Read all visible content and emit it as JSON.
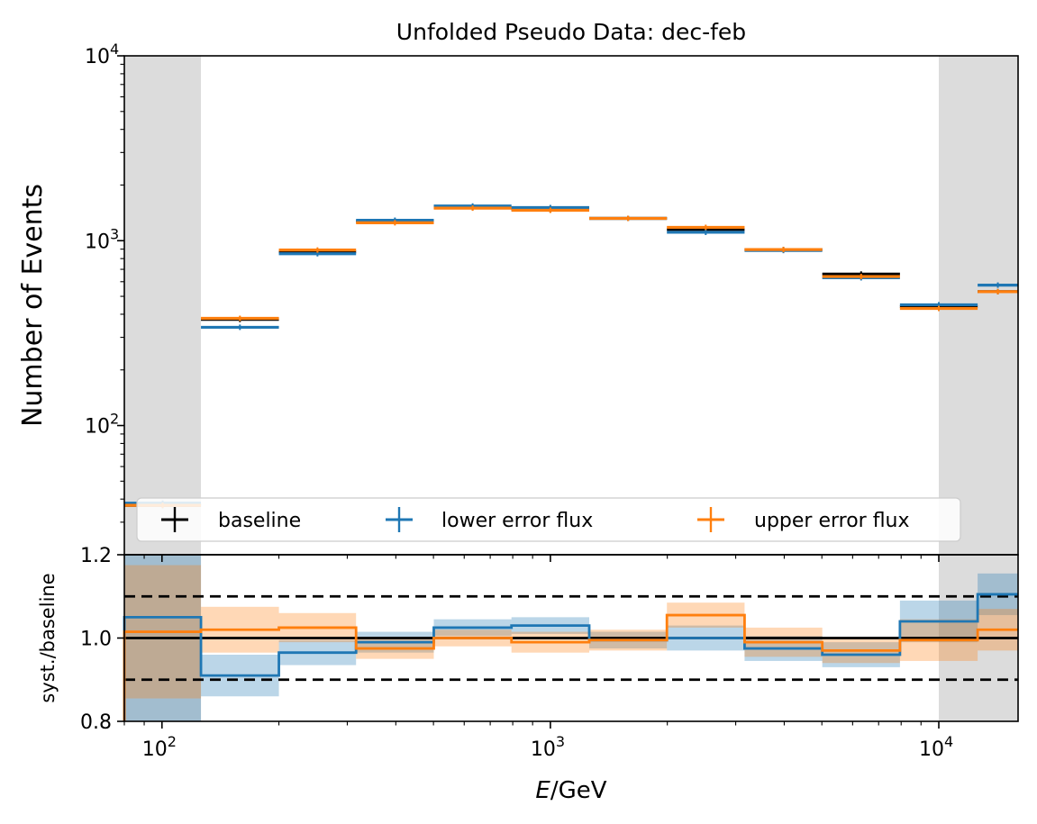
{
  "chart_data": [
    {
      "type": "line",
      "title": "Unfolded Pseudo Data: dec-feb",
      "ylabel": "Number of Events",
      "yscale": "log",
      "ylim": [
        20,
        10000
      ],
      "xscale": "log",
      "xlim": [
        80,
        16000
      ],
      "y_ticks": [
        {
          "base": "10",
          "exp": "2",
          "value": 100
        },
        {
          "base": "10",
          "exp": "3",
          "value": 1000
        },
        {
          "base": "10",
          "exp": "4",
          "value": 10000
        }
      ],
      "shaded_x_ranges": [
        [
          80,
          126
        ],
        [
          10000,
          16000
        ]
      ],
      "bin_edges": [
        80,
        126,
        200,
        316,
        501,
        794,
        1259,
        1995,
        3162,
        5012,
        7943,
        12589,
        16000
      ],
      "series": [
        {
          "name": "baseline",
          "color": "#000000",
          "values": [
            37,
            375,
            870,
            1270,
            1510,
            1470,
            1320,
            1150,
            895,
            660,
            440,
            530
          ]
        },
        {
          "name": "lower error flux",
          "color": "#1f77b4",
          "values": [
            38,
            340,
            850,
            1290,
            1540,
            1510,
            1320,
            1110,
            885,
            630,
            450,
            575
          ]
        },
        {
          "name": "upper error flux",
          "color": "#ff7f0e",
          "values": [
            37,
            380,
            890,
            1250,
            1500,
            1460,
            1320,
            1180,
            895,
            640,
            430,
            530
          ]
        }
      ],
      "legend": {
        "placement": "bottom",
        "entries": [
          "baseline",
          "lower error flux",
          "upper error flux"
        ]
      }
    },
    {
      "type": "line",
      "ylabel": "syst./baseline",
      "xlabel_var": "E",
      "xlabel_unit": "/GeV",
      "ylim": [
        0.8,
        1.2
      ],
      "y_ticks": [
        "0.8",
        "1.0",
        "1.2"
      ],
      "x_ticks": [
        {
          "base": "10",
          "exp": "2",
          "value": 100
        },
        {
          "base": "10",
          "exp": "3",
          "value": 1000
        },
        {
          "base": "10",
          "exp": "4",
          "value": 10000
        }
      ],
      "reference_lines": [
        1.0,
        0.9,
        1.1
      ],
      "series": [
        {
          "name": "lower error flux",
          "color": "#1f77b4",
          "values": [
            1.05,
            0.91,
            0.965,
            0.99,
            1.025,
            1.03,
            0.995,
            1.0,
            0.975,
            0.96,
            1.04,
            1.105
          ],
          "band_halfwidth": [
            0.25,
            0.05,
            0.03,
            0.025,
            0.02,
            0.02,
            0.02,
            0.03,
            0.03,
            0.03,
            0.05,
            0.05
          ]
        },
        {
          "name": "upper error flux",
          "color": "#ff7f0e",
          "values": [
            1.015,
            1.02,
            1.025,
            0.975,
            1.0,
            0.99,
            0.995,
            1.055,
            0.99,
            0.97,
            0.995,
            1.02
          ],
          "band_halfwidth": [
            0.16,
            0.055,
            0.035,
            0.025,
            0.02,
            0.025,
            0.025,
            0.03,
            0.035,
            0.03,
            0.05,
            0.05
          ]
        }
      ]
    }
  ]
}
